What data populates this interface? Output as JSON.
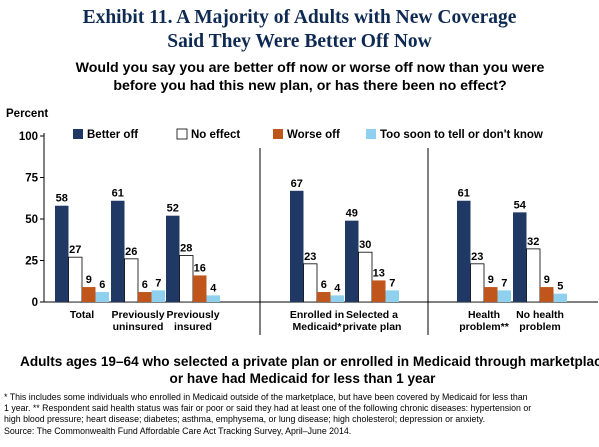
{
  "title": {
    "line1": "Exhibit 11. A Majority of Adults with New Coverage",
    "line2": "Said They Were Better Off Now"
  },
  "question": {
    "line1": "Would you say you are better off now or worse off now than you were",
    "line2": "before you had this new plan, or has there been no effect?"
  },
  "subtitle": {
    "line1": "Adults ages 19–64 who selected a private plan or enrolled in Medicaid through marketplace",
    "line2": "or have had Medicaid for less than 1 year"
  },
  "notes": {
    "line1": "* This includes some individuals who enrolled in Medicaid outside of the marketplace, but have been covered by Medicaid for less than",
    "line2": "1 year. ** Respondent said health status was fair or poor or said they had at least one of the following chronic diseases: hypertension or",
    "line3": "high blood pressure; heart disease; diabetes; asthma, emphysema, or lung disease; high cholesterol; depression or anxiety.",
    "line4": "Source: The Commonwealth Fund Affordable Care Act Tracking Survey, April–June 2014."
  },
  "colors": {
    "better_off": "#1f3864",
    "no_effect": "#ffffff",
    "worse_off": "#c0561b",
    "too_soon": "#8fd0ef",
    "title": "#0f2a52"
  },
  "chart_data": {
    "type": "bar",
    "ylabel": "Percent",
    "ylim": [
      0,
      100
    ],
    "yticks": [
      0,
      25,
      50,
      75,
      100
    ],
    "legend_position": "top",
    "categories": [
      [
        "Total"
      ],
      [
        "Previously",
        "uninsured"
      ],
      [
        "Previously",
        "insured"
      ],
      [
        "Enrolled in",
        "Medicaid*"
      ],
      [
        "Selected a",
        "private plan"
      ],
      [
        "Health",
        "problem**"
      ],
      [
        "No health",
        "problem"
      ]
    ],
    "series": [
      {
        "name": "Better off",
        "color": "#1f3864",
        "values": [
          58,
          61,
          52,
          67,
          49,
          61,
          54
        ]
      },
      {
        "name": "No effect",
        "color": "#ffffff",
        "values": [
          27,
          26,
          28,
          23,
          30,
          23,
          32
        ]
      },
      {
        "name": "Worse off",
        "color": "#c0561b",
        "values": [
          9,
          6,
          16,
          6,
          13,
          9,
          9
        ]
      },
      {
        "name": "Too soon to tell or don't know",
        "color": "#8fd0ef",
        "values": [
          6,
          7,
          4,
          4,
          7,
          7,
          5
        ]
      }
    ],
    "groups_separated_after": [
      2,
      4
    ]
  }
}
